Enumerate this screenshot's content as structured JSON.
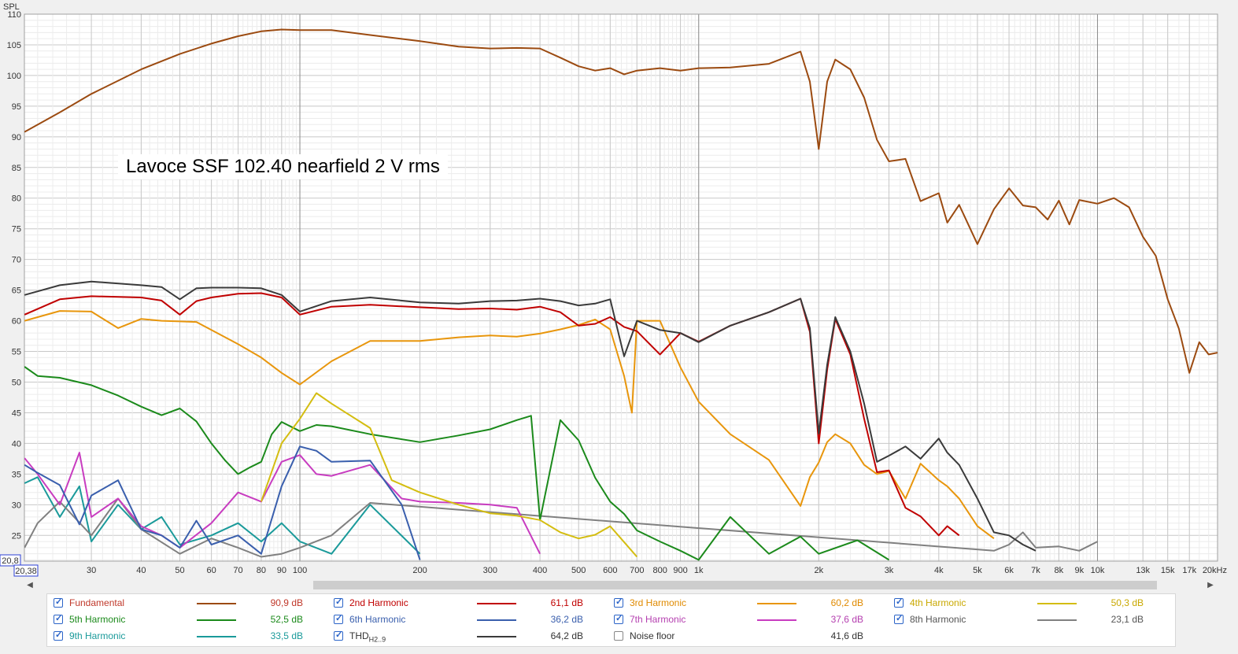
{
  "chart_data": {
    "type": "line",
    "title": "Lavoce SSF 102.40 nearfield 2 V rms",
    "ylabel": "SPL",
    "xscale": "log",
    "xlim": [
      20.38,
      20000
    ],
    "ylim": [
      20.8,
      110
    ],
    "x_ticks": [
      {
        "v": 30,
        "label": "30"
      },
      {
        "v": 40,
        "label": "40"
      },
      {
        "v": 50,
        "label": "50"
      },
      {
        "v": 60,
        "label": "60"
      },
      {
        "v": 70,
        "label": "70"
      },
      {
        "v": 80,
        "label": "80"
      },
      {
        "v": 90,
        "label": "90"
      },
      {
        "v": 100,
        "label": "100"
      },
      {
        "v": 200,
        "label": "200"
      },
      {
        "v": 300,
        "label": "300"
      },
      {
        "v": 400,
        "label": "400"
      },
      {
        "v": 500,
        "label": "500"
      },
      {
        "v": 600,
        "label": "600"
      },
      {
        "v": 700,
        "label": "700"
      },
      {
        "v": 800,
        "label": "800"
      },
      {
        "v": 900,
        "label": "900"
      },
      {
        "v": 1000,
        "label": "1k"
      },
      {
        "v": 2000,
        "label": "2k"
      },
      {
        "v": 3000,
        "label": "3k"
      },
      {
        "v": 4000,
        "label": "4k"
      },
      {
        "v": 5000,
        "label": "5k"
      },
      {
        "v": 6000,
        "label": "6k"
      },
      {
        "v": 7000,
        "label": "7k"
      },
      {
        "v": 8000,
        "label": "8k"
      },
      {
        "v": 9000,
        "label": "9k"
      },
      {
        "v": 10000,
        "label": "10k"
      },
      {
        "v": 13000,
        "label": "13k"
      },
      {
        "v": 15000,
        "label": "15k"
      },
      {
        "v": 17000,
        "label": "17k"
      },
      {
        "v": 20000,
        "label": "20kHz"
      }
    ],
    "x_min_label": "20,38",
    "y_min_label": "20,8",
    "y_ticks": [
      25,
      30,
      35,
      40,
      45,
      50,
      55,
      60,
      65,
      70,
      75,
      80,
      85,
      90,
      95,
      100,
      105,
      110
    ],
    "grid": true,
    "series": [
      {
        "name": "Fundamental",
        "color": "#9b4a10",
        "value_label": "90,9 dB",
        "checked": true,
        "x": [
          20.4,
          25,
          30,
          40,
          50,
          60,
          70,
          80,
          90,
          100,
          120,
          150,
          200,
          250,
          300,
          350,
          400,
          450,
          500,
          550,
          600,
          650,
          700,
          800,
          900,
          1000,
          1200,
          1500,
          1800,
          1900,
          2000,
          2100,
          2200,
          2400,
          2600,
          2800,
          3000,
          3300,
          3600,
          4000,
          4200,
          4500,
          5000,
          5500,
          6000,
          6500,
          7000,
          7500,
          8000,
          8500,
          9000,
          10000,
          11000,
          12000,
          13000,
          14000,
          15000,
          16000,
          17000,
          18000,
          19000,
          20000
        ],
        "y": [
          90.8,
          94,
          97,
          101,
          103.5,
          105.2,
          106.4,
          107.2,
          107.5,
          107.4,
          107.4,
          106.6,
          105.6,
          104.7,
          104.4,
          104.5,
          104.4,
          102.9,
          101.5,
          100.8,
          101.2,
          100.2,
          100.8,
          101.2,
          100.8,
          101.2,
          101.3,
          101.9,
          103.9,
          99,
          88,
          99,
          102.6,
          101,
          96.4,
          89.5,
          86,
          86.4,
          79.5,
          80.8,
          76,
          78.9,
          72.5,
          78.2,
          81.6,
          78.8,
          78.5,
          76.5,
          79.6,
          75.7,
          79.7,
          79.1,
          80,
          78.5,
          73.7,
          70.6,
          63.5,
          58.7,
          51.5,
          56.5,
          54.5,
          54.8
        ]
      },
      {
        "name": "2nd Harmonic",
        "color": "#c00000",
        "value_label": "61,1 dB",
        "checked": true,
        "x": [
          20.4,
          25,
          30,
          40,
          45,
          50,
          55,
          60,
          70,
          80,
          90,
          100,
          120,
          150,
          200,
          250,
          300,
          350,
          400,
          450,
          500,
          550,
          600,
          650,
          700,
          800,
          900,
          1000,
          1200,
          1500,
          1800,
          1900,
          2000,
          2100,
          2200,
          2400,
          2600,
          2800,
          3000,
          3300,
          3600,
          4000,
          4200,
          4500
        ],
        "y": [
          61,
          63.5,
          64,
          63.8,
          63.3,
          61,
          63.2,
          63.8,
          64.4,
          64.5,
          63.8,
          61,
          62.3,
          62.6,
          62.2,
          61.9,
          62,
          61.8,
          62.3,
          61.4,
          59.2,
          59.5,
          60.6,
          59,
          58.3,
          54.5,
          58,
          56.6,
          59.2,
          61.4,
          63.6,
          58.2,
          40,
          52,
          60.3,
          54.5,
          44,
          35.3,
          35.6,
          29.5,
          28.1,
          25,
          26.5,
          25
        ]
      },
      {
        "name": "3rd Harmonic",
        "color": "#e8960c",
        "value_label": "60,2 dB",
        "checked": true,
        "x": [
          20.4,
          25,
          30,
          35,
          40,
          45,
          50,
          55,
          60,
          70,
          80,
          90,
          100,
          120,
          150,
          200,
          250,
          300,
          350,
          400,
          450,
          500,
          550,
          600,
          650,
          680,
          700,
          800,
          900,
          1000,
          1200,
          1500,
          1800,
          1900,
          2000,
          2100,
          2200,
          2400,
          2600,
          2800,
          3000,
          3300,
          3600,
          4000,
          4200,
          4500,
          5000,
          5500
        ],
        "y": [
          60,
          61.6,
          61.5,
          58.8,
          60.3,
          60,
          59.9,
          59.8,
          58.5,
          56.2,
          54,
          51.5,
          49.6,
          53.4,
          56.7,
          56.7,
          57.3,
          57.6,
          57.4,
          57.9,
          58.6,
          59.3,
          60.2,
          58.6,
          51,
          45,
          60,
          60,
          52.4,
          46.8,
          41.5,
          37.3,
          29.8,
          34.5,
          36.9,
          40.2,
          41.5,
          40,
          36.5,
          35,
          35.5,
          31,
          36.7,
          34,
          33,
          31,
          26.5,
          24.5
        ]
      },
      {
        "name": "4th Harmonic",
        "color": "#d4bd10",
        "value_label": "50,3 dB",
        "checked": true,
        "x": [
          80,
          90,
          100,
          110,
          120,
          150,
          170,
          200,
          250,
          300,
          350,
          400,
          450,
          500,
          550,
          600,
          650,
          700
        ],
        "y": [
          30.5,
          40,
          44,
          48.2,
          46.5,
          42.5,
          34,
          32,
          30,
          28.6,
          28.2,
          27.5,
          25.5,
          24.5,
          25.1,
          26.5,
          23.9,
          21.5
        ]
      },
      {
        "name": "5th Harmonic",
        "color": "#1b8a1b",
        "value_label": "52,5 dB",
        "checked": true,
        "x": [
          20.4,
          22,
          25,
          30,
          35,
          40,
          45,
          50,
          55,
          60,
          65,
          70,
          75,
          80,
          85,
          90,
          100,
          110,
          120,
          150,
          200,
          250,
          300,
          350,
          380,
          400,
          450,
          500,
          550,
          600,
          650,
          700,
          800,
          900,
          1000,
          1200,
          1500,
          1800,
          2000,
          2500,
          3000
        ],
        "y": [
          52.5,
          51,
          50.7,
          49.5,
          47.8,
          46,
          44.6,
          45.7,
          43.6,
          40,
          37.2,
          35,
          36.1,
          37,
          41.5,
          43.5,
          42,
          43,
          42.8,
          41.5,
          40.2,
          41.3,
          42.3,
          43.8,
          44.5,
          27.5,
          43.8,
          40.5,
          34.4,
          30.5,
          28.5,
          25.8,
          24,
          22.5,
          21,
          28,
          22,
          24.8,
          22,
          24.2,
          21
        ]
      },
      {
        "name": "6th Harmonic",
        "color": "#3a5fad",
        "value_label": "36,2 dB",
        "checked": true,
        "x": [
          20.4,
          22,
          25,
          28,
          30,
          35,
          40,
          45,
          50,
          55,
          60,
          70,
          80,
          90,
          100,
          110,
          120,
          150,
          180,
          200
        ],
        "y": [
          36.5,
          35.2,
          33.2,
          26.8,
          31.5,
          34,
          26,
          25,
          23,
          27.4,
          23.5,
          25,
          22,
          33,
          39.5,
          38.8,
          37,
          37.2,
          30,
          21
        ]
      },
      {
        "name": "7th Harmonic",
        "color": "#c83cc0",
        "value_label": "37,6 dB",
        "checked": true,
        "x": [
          20.4,
          22,
          25,
          28,
          30,
          35,
          40,
          45,
          50,
          60,
          70,
          80,
          90,
          100,
          110,
          120,
          150,
          180,
          200,
          250,
          300,
          350,
          400
        ],
        "y": [
          37.6,
          35,
          30,
          38.5,
          28,
          31,
          26.5,
          25,
          23,
          27,
          32,
          30.5,
          37,
          38.1,
          35,
          34.7,
          36.5,
          31,
          30.5,
          30.3,
          30,
          29.5,
          22
        ]
      },
      {
        "name": "8th Harmonic",
        "color": "#808080",
        "value_label": "23,1 dB",
        "checked": true,
        "x": [
          20.4,
          22,
          25,
          30,
          35,
          40,
          50,
          60,
          70,
          80,
          90,
          100,
          120,
          150,
          5500,
          6000,
          6500,
          7000,
          8000,
          9000,
          10000
        ],
        "y": [
          23,
          27,
          30.5,
          25,
          31,
          26,
          22,
          24.5,
          23,
          21.5,
          22,
          23,
          25,
          30.3,
          22.5,
          23.5,
          25.5,
          23,
          23.2,
          22.5,
          24
        ]
      },
      {
        "name": "9th Harmonic",
        "color": "#1a9a9a",
        "value_label": "33,5 dB",
        "checked": true,
        "x": [
          20.4,
          22,
          25,
          28,
          30,
          35,
          40,
          45,
          50,
          60,
          70,
          80,
          90,
          100,
          120,
          150,
          200
        ],
        "y": [
          33.5,
          34.5,
          28,
          33,
          24,
          30,
          26,
          28,
          23.5,
          25,
          27,
          24,
          27,
          24,
          22,
          30,
          22
        ]
      },
      {
        "name": "THD",
        "name_sub": "H2..9",
        "color": "#3a3a3a",
        "value_label": "64,2 dB",
        "checked": true,
        "x": [
          20.4,
          25,
          30,
          40,
          45,
          50,
          55,
          60,
          70,
          80,
          90,
          100,
          120,
          150,
          200,
          250,
          300,
          350,
          400,
          450,
          500,
          550,
          600,
          650,
          700,
          800,
          900,
          1000,
          1200,
          1500,
          1800,
          1900,
          2000,
          2100,
          2200,
          2400,
          2600,
          2800,
          3000,
          3300,
          3600,
          4000,
          4200,
          4500,
          5000,
          5500,
          6000,
          6500,
          7000
        ],
        "y": [
          64.2,
          65.8,
          66.4,
          65.8,
          65.5,
          63.5,
          65.3,
          65.4,
          65.4,
          65.3,
          64.2,
          61.5,
          63.2,
          63.8,
          63,
          62.8,
          63.2,
          63.3,
          63.6,
          63.2,
          62.5,
          62.8,
          63.5,
          54.2,
          60,
          58.5,
          58,
          56.5,
          59.2,
          61.4,
          63.6,
          58.8,
          41.6,
          52.8,
          60.6,
          55,
          46.5,
          37,
          38,
          39.5,
          37.5,
          40.8,
          38.5,
          36.5,
          31,
          25.5,
          25,
          23.5,
          22.5
        ]
      },
      {
        "name": "Noise floor",
        "color": "#888888",
        "value_label": "41,6 dB",
        "checked": false,
        "x": [],
        "y": []
      }
    ]
  },
  "legend": {
    "rows": [
      [
        0,
        2,
        4,
        6
      ],
      [
        1,
        3,
        5,
        7
      ],
      [
        8,
        9,
        10,
        -1
      ]
    ],
    "order": [
      "Fundamental",
      "2nd Harmonic",
      "3rd Harmonic",
      "4th Harmonic",
      "5th Harmonic",
      "6th Harmonic",
      "7th Harmonic",
      "8th Harmonic",
      "9th Harmonic",
      "THD",
      "Noise floor"
    ]
  },
  "colors": {
    "label_text_fundamental": "#c0392b",
    "label_text_h2": "#c00000",
    "label_text_h3": "#e08a00",
    "label_text_h4": "#c9a800",
    "label_text_h5": "#1b8a1b",
    "label_text_h6": "#3a5fad",
    "label_text_h7": "#b540b0",
    "label_text_h8": "#555555",
    "label_text_h9": "#1a9a9a",
    "label_text_thd": "#333333",
    "label_text_noise": "#333333"
  }
}
